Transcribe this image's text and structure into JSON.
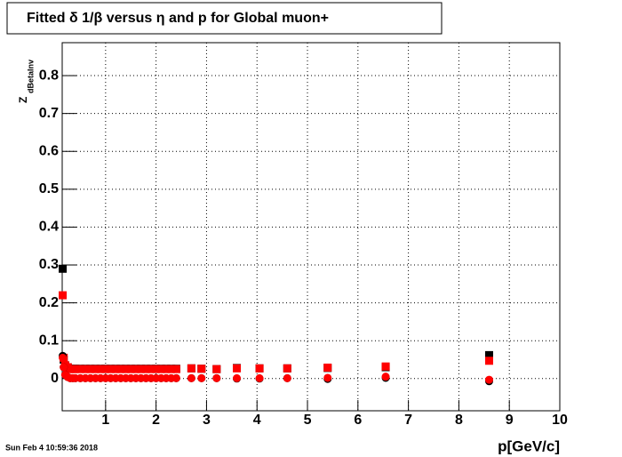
{
  "chart_data": {
    "type": "scatter",
    "title": "Fitted δ 1/β versus η and p for Global muon+",
    "x_label": "p[GeV/c]",
    "y_label": "Z",
    "y_label_sub": "dBetaInv",
    "timestamp": "Sun Feb  4 10:59:36 2018",
    "xlim": [
      0.14,
      10
    ],
    "ylim": [
      -0.085,
      0.887
    ],
    "xticks": [
      1,
      2,
      3,
      4,
      5,
      6,
      7,
      8,
      9,
      10
    ],
    "yticks": [
      0,
      0.1,
      0.2,
      0.3,
      0.4,
      0.5,
      0.6,
      0.7,
      0.8
    ],
    "grid": true,
    "x": [
      0.15,
      0.17,
      0.2,
      0.25,
      0.3,
      0.35,
      0.4,
      0.5,
      0.6,
      0.7,
      0.8,
      0.9,
      1.0,
      1.1,
      1.2,
      1.3,
      1.4,
      1.5,
      1.6,
      1.7,
      1.8,
      1.9,
      2.0,
      2.1,
      2.2,
      2.3,
      2.4,
      2.7,
      2.9,
      3.2,
      3.6,
      4.05,
      4.6,
      5.4,
      6.55,
      8.6
    ],
    "series": [
      {
        "color": "#000000",
        "marker": "square",
        "values": [
          0.29,
          0.05,
          0.035,
          0.03,
          0.026,
          0.026,
          0.026,
          0.026,
          0.026,
          0.026,
          0.026,
          0.026,
          0.026,
          0.026,
          0.026,
          0.026,
          0.026,
          0.026,
          0.026,
          0.026,
          0.026,
          0.026,
          0.026,
          0.026,
          0.026,
          0.026,
          0.026,
          0.027,
          0.026,
          0.025,
          0.028,
          0.027,
          0.027,
          0.028,
          0.03,
          0.062
        ]
      },
      {
        "color": "#ff0000",
        "marker": "square",
        "values": [
          0.22,
          0.055,
          0.035,
          0.03,
          0.025,
          0.025,
          0.025,
          0.025,
          0.025,
          0.025,
          0.025,
          0.025,
          0.025,
          0.025,
          0.025,
          0.025,
          0.025,
          0.025,
          0.025,
          0.025,
          0.025,
          0.025,
          0.025,
          0.025,
          0.025,
          0.025,
          0.025,
          0.027,
          0.026,
          0.025,
          0.027,
          0.027,
          0.027,
          0.029,
          0.032,
          0.047
        ]
      },
      {
        "color": "#000000",
        "marker": "circle",
        "values": [
          0.06,
          0.03,
          0.01,
          0.004,
          0.001,
          0.001,
          0.001,
          0.001,
          0.001,
          0.001,
          0.001,
          0.001,
          0.001,
          0.001,
          0.001,
          0.001,
          0.001,
          0.001,
          0.001,
          0.001,
          0.001,
          0.001,
          0.001,
          0.001,
          0.001,
          0.001,
          0.001,
          0.001,
          0.001,
          0.001,
          0.0,
          0.0,
          0.001,
          -0.001,
          0.002,
          -0.007
        ]
      },
      {
        "color": "#ff0000",
        "marker": "circle",
        "values": [
          0.055,
          0.03,
          0.01,
          0.004,
          0.001,
          0.001,
          0.001,
          0.001,
          0.001,
          0.001,
          0.001,
          0.001,
          0.001,
          0.001,
          0.001,
          0.001,
          0.001,
          0.001,
          0.001,
          0.001,
          0.001,
          0.001,
          0.001,
          0.001,
          0.001,
          0.001,
          0.001,
          0.001,
          0.001,
          0.001,
          0.001,
          0.001,
          0.001,
          0.002,
          0.005,
          -0.003
        ]
      }
    ]
  }
}
